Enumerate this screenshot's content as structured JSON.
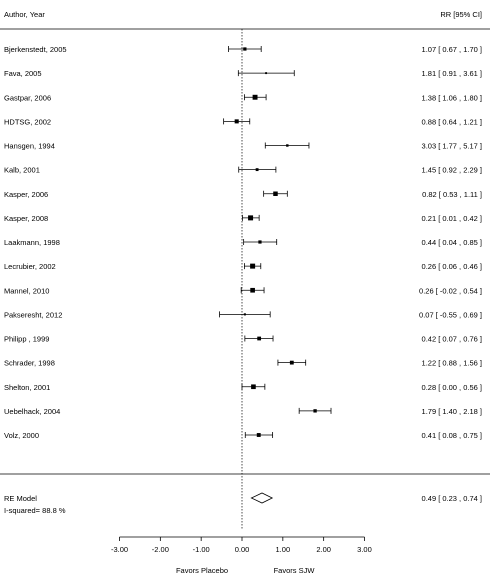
{
  "chart_data": {
    "type": "forest",
    "header": {
      "left": "Author, Year",
      "right": "RR [95% CI]"
    },
    "studies": [
      {
        "label": "Bjerkenstedt, 2005",
        "est": 0.07,
        "lo": -0.33,
        "hi": 0.47,
        "ci_text": "1.07 [ 0.67 ,  1.70 ]"
      },
      {
        "label": "Fava, 2005",
        "est": 0.59,
        "lo": -0.09,
        "hi": 1.28,
        "ci_text": "1.81 [ 0.91 ,  3.61 ]"
      },
      {
        "label": "Gastpar, 2006",
        "est": 0.32,
        "lo": 0.06,
        "hi": 0.59,
        "ci_text": "1.38 [ 1.06 ,  1.80 ]"
      },
      {
        "label": "HDTSG, 2002",
        "est": -0.13,
        "lo": -0.45,
        "hi": 0.19,
        "ci_text": "0.88 [ 0.64 ,  1.21 ]"
      },
      {
        "label": "Hansgen, 1994",
        "est": 1.11,
        "lo": 0.57,
        "hi": 1.64,
        "ci_text": "3.03 [ 1.77 ,  5.17 ]"
      },
      {
        "label": "Kalb, 2001",
        "est": 0.37,
        "lo": -0.08,
        "hi": 0.83,
        "ci_text": "1.45 [ 0.92 ,  2.29 ]"
      },
      {
        "label": "Kasper, 2006",
        "est": 0.82,
        "lo": 0.53,
        "hi": 1.11,
        "ci_text": "0.82 [ 0.53 ,  1.11 ]"
      },
      {
        "label": "Kasper, 2008",
        "est": 0.21,
        "lo": 0.01,
        "hi": 0.42,
        "ci_text": "0.21 [ 0.01 ,  0.42 ]"
      },
      {
        "label": "Laakmann, 1998",
        "est": 0.44,
        "lo": 0.04,
        "hi": 0.85,
        "ci_text": "0.44 [ 0.04 ,  0.85 ]"
      },
      {
        "label": "Lecrubier, 2002",
        "est": 0.26,
        "lo": 0.06,
        "hi": 0.46,
        "ci_text": "0.26 [ 0.06 ,  0.46 ]"
      },
      {
        "label": "Mannel, 2010",
        "est": 0.26,
        "lo": -0.02,
        "hi": 0.54,
        "ci_text": "0.26 [ -0.02 ,  0.54 ]"
      },
      {
        "label": "Pakseresht, 2012",
        "est": 0.07,
        "lo": -0.55,
        "hi": 0.69,
        "ci_text": "0.07 [ -0.55 ,  0.69 ]"
      },
      {
        "label": "Philipp , 1999",
        "est": 0.42,
        "lo": 0.07,
        "hi": 0.76,
        "ci_text": "0.42 [ 0.07 ,  0.76 ]"
      },
      {
        "label": "Schrader, 1998",
        "est": 1.22,
        "lo": 0.88,
        "hi": 1.56,
        "ci_text": "1.22 [ 0.88 ,  1.56 ]"
      },
      {
        "label": "Shelton, 2001",
        "est": 0.28,
        "lo": 0.0,
        "hi": 0.56,
        "ci_text": "0.28 [ 0.00 ,  0.56 ]"
      },
      {
        "label": "Uebelhack, 2004",
        "est": 1.79,
        "lo": 1.4,
        "hi": 2.18,
        "ci_text": "1.79 [ 1.40 ,  2.18 ]"
      },
      {
        "label": "Volz, 2000",
        "est": 0.41,
        "lo": 0.08,
        "hi": 0.75,
        "ci_text": "0.41 [ 0.08 ,  0.75 ]"
      }
    ],
    "summary": {
      "label": "RE Model",
      "est": 0.49,
      "lo": 0.23,
      "hi": 0.74,
      "ci_text": "0.49 [ 0.23 ,  0.74 ]",
      "heterogeneity": "I-squared= 88.8 %"
    },
    "x_ticks": [
      "-3.00",
      "-2.00",
      "-1.00",
      "0.00",
      "1.00",
      "2.00",
      "3.00"
    ],
    "xlim": [
      -3,
      3
    ],
    "reference_line": 0,
    "favors_left": "Favors Placebo",
    "favors_right": "Favors SJW",
    "grid": false
  }
}
